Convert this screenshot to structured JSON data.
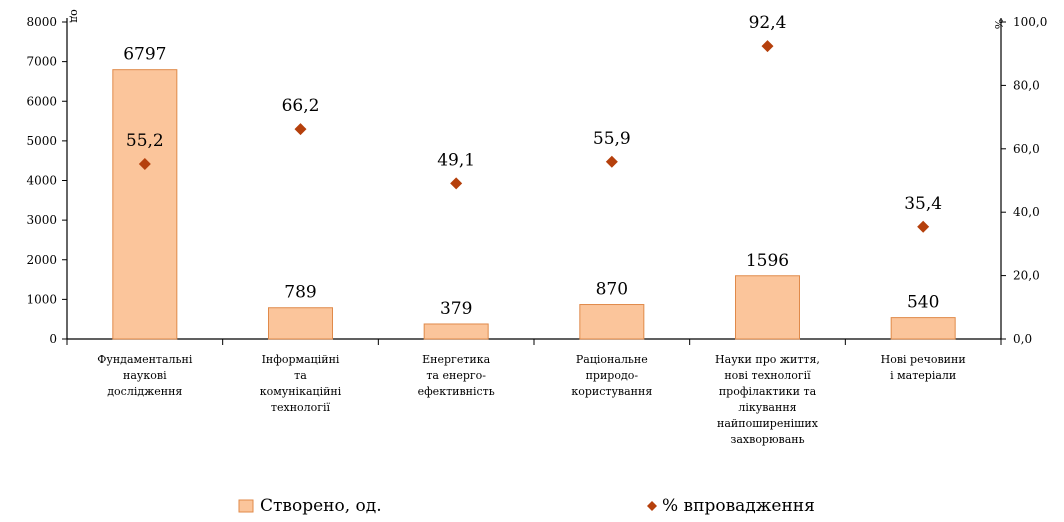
{
  "chart_data": {
    "type": "bar",
    "categories": [
      [
        "Фундаментальні",
        "наукові",
        "дослідження"
      ],
      [
        "Інформаційні",
        "та",
        "комунікаційні",
        "технології"
      ],
      [
        "Енергетика",
        "та енерго-",
        "ефективність"
      ],
      [
        "Раціональне",
        "природо-",
        "користування"
      ],
      [
        "Науки про життя,",
        "нові технології",
        "профілактики та",
        "лікування",
        "найпоширеніших",
        "захворювань"
      ],
      [
        "Нові речовини",
        "і матеріали"
      ]
    ],
    "series": [
      {
        "name": "Створено, од.",
        "type": "bar",
        "axis": "left",
        "values": [
          6797,
          789,
          379,
          870,
          1596,
          540
        ],
        "labels": [
          "6797",
          "789",
          "379",
          "870",
          "1596",
          "540"
        ],
        "color": "#fbc59b",
        "border": "#e08a4a"
      },
      {
        "name": "% впровадження",
        "type": "scatter",
        "axis": "right",
        "values": [
          55.2,
          66.2,
          49.1,
          55.9,
          92.4,
          35.4
        ],
        "labels": [
          "55,2",
          "66,2",
          "49,1",
          "55,9",
          "92,4",
          "35,4"
        ],
        "color": "#b5400c"
      }
    ],
    "y_left": {
      "unit": "од",
      "ylim": [
        0,
        8000
      ],
      "ticks": [
        0,
        1000,
        2000,
        3000,
        4000,
        5000,
        6000,
        7000,
        8000
      ],
      "tick_labels": [
        "0",
        "1000",
        "2000",
        "3000",
        "4000",
        "5000",
        "6000",
        "7000",
        "8000"
      ]
    },
    "y_right": {
      "unit": "%",
      "ylim": [
        0,
        100
      ],
      "ticks": [
        0,
        20,
        40,
        60,
        80,
        100
      ],
      "tick_labels": [
        "0,0",
        "20,0",
        "40,0",
        "60,0",
        "80,0",
        "100,0"
      ]
    },
    "legend": {
      "placement": "bottom",
      "items": [
        "Створено, од.",
        "% впровадження"
      ]
    },
    "grid": false
  }
}
